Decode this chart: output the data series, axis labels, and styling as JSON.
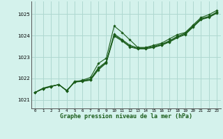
{
  "background_color": "#d4f2ec",
  "grid_color": "#aed8d0",
  "line_color": "#1a5c1a",
  "marker_color": "#1a5c1a",
  "xlabel": "Graphe pression niveau de la mer (hPa)",
  "ylim": [
    1020.6,
    1025.6
  ],
  "xlim": [
    -0.5,
    23.5
  ],
  "yticks": [
    1021,
    1022,
    1023,
    1024,
    1025
  ],
  "xticks": [
    0,
    1,
    2,
    3,
    4,
    5,
    6,
    7,
    8,
    9,
    10,
    11,
    12,
    13,
    14,
    15,
    16,
    17,
    18,
    19,
    20,
    21,
    22,
    23
  ],
  "series": [
    [
      1021.35,
      1021.55,
      1021.65,
      1021.7,
      1021.45,
      1021.82,
      1021.92,
      1022.05,
      1022.7,
      1022.95,
      1024.45,
      1024.15,
      1023.8,
      1023.45,
      1023.45,
      1023.55,
      1023.65,
      1023.85,
      1024.05,
      1024.15,
      1024.5,
      1024.85,
      1024.98,
      1025.18
    ],
    [
      1021.35,
      1021.52,
      1021.62,
      1021.72,
      1021.42,
      1021.87,
      1021.9,
      1021.97,
      1022.5,
      1022.78,
      1024.08,
      1023.82,
      1023.55,
      1023.43,
      1023.43,
      1023.5,
      1023.6,
      1023.76,
      1023.97,
      1024.12,
      1024.45,
      1024.8,
      1024.9,
      1025.1
    ],
    [
      1021.35,
      1021.52,
      1021.62,
      1021.72,
      1021.42,
      1021.85,
      1021.88,
      1021.94,
      1022.45,
      1022.75,
      1024.03,
      1023.78,
      1023.5,
      1023.4,
      1023.4,
      1023.47,
      1023.57,
      1023.73,
      1023.93,
      1024.08,
      1024.42,
      1024.77,
      1024.87,
      1025.07
    ],
    [
      1021.35,
      1021.52,
      1021.62,
      1021.72,
      1021.42,
      1021.83,
      1021.86,
      1021.92,
      1022.4,
      1022.72,
      1023.98,
      1023.75,
      1023.47,
      1023.38,
      1023.38,
      1023.45,
      1023.55,
      1023.7,
      1023.9,
      1024.05,
      1024.4,
      1024.75,
      1024.85,
      1025.05
    ]
  ]
}
